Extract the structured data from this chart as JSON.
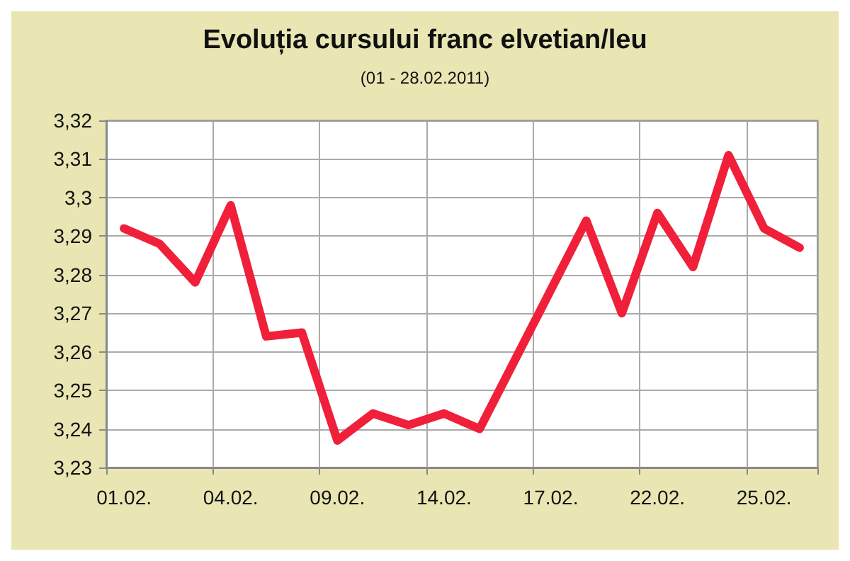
{
  "chart_data": {
    "type": "line",
    "title": "Evoluția cursului franc elvetian/leu",
    "subtitle": "(01 - 28.02.2011)",
    "categories": [
      "01.02.",
      null,
      null,
      "04.02.",
      null,
      null,
      "09.02.",
      null,
      null,
      "14.02.",
      null,
      null,
      "17.02.",
      null,
      null,
      "22.02.",
      null,
      null,
      "25.02.",
      null
    ],
    "series": [
      {
        "color": "#f0203a",
        "values": [
          3.292,
          3.288,
          3.278,
          3.298,
          3.264,
          3.265,
          3.237,
          3.244,
          3.241,
          3.244,
          3.24,
          3.258,
          3.276,
          3.294,
          3.27,
          3.296,
          3.282,
          3.311,
          3.292,
          3.287
        ]
      }
    ],
    "ylim": [
      3.23,
      3.32
    ],
    "yticks": [
      {
        "value": 3.23,
        "label": "3,23"
      },
      {
        "value": 3.24,
        "label": "3,24"
      },
      {
        "value": 3.25,
        "label": "3,25"
      },
      {
        "value": 3.26,
        "label": "3,26"
      },
      {
        "value": 3.27,
        "label": "3,27"
      },
      {
        "value": 3.28,
        "label": "3,28"
      },
      {
        "value": 3.29,
        "label": "3,29"
      },
      {
        "value": 3.3,
        "label": "3,3"
      },
      {
        "value": 3.31,
        "label": "3,31"
      },
      {
        "value": 3.32,
        "label": "3,32"
      }
    ],
    "grid": true,
    "marker": "none",
    "line_style": "solid"
  }
}
